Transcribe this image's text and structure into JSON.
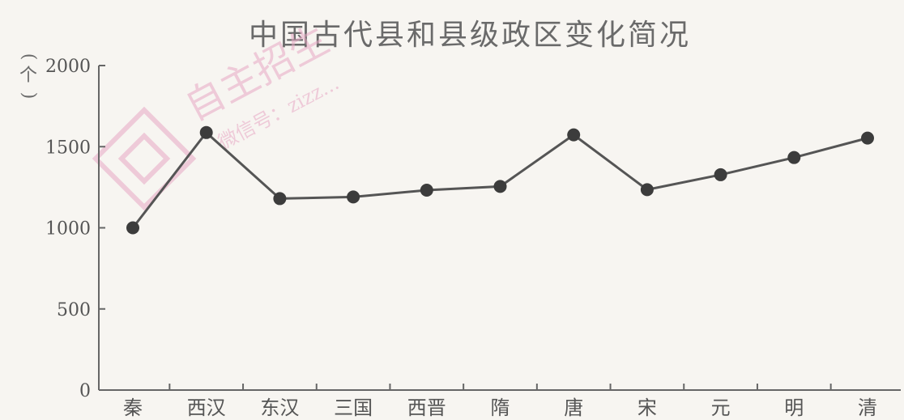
{
  "chart_data": {
    "type": "line",
    "title": "中国古代县和县级政区变化简况",
    "ylabel": "(个)",
    "xlabel": "",
    "categories": [
      "秦",
      "西汉",
      "东汉",
      "三国",
      "西晋",
      "隋",
      "唐",
      "宋",
      "元",
      "明",
      "清"
    ],
    "series": [
      {
        "values": [
          1000,
          1587,
          1180,
          1190,
          1232,
          1255,
          1573,
          1235,
          1327,
          1433,
          1553
        ]
      }
    ],
    "ylim": [
      0,
      2000
    ],
    "yticks": [
      0,
      500,
      1000,
      1500,
      2000
    ],
    "grid": false,
    "legend": "none"
  },
  "watermark": {
    "text_main": "自主招生",
    "text_sub": "微信号：zizz..."
  },
  "colors": {
    "line": "#555555",
    "marker": "#3c3c3c",
    "axis": "#666666",
    "watermark": "#e7a8c4"
  }
}
